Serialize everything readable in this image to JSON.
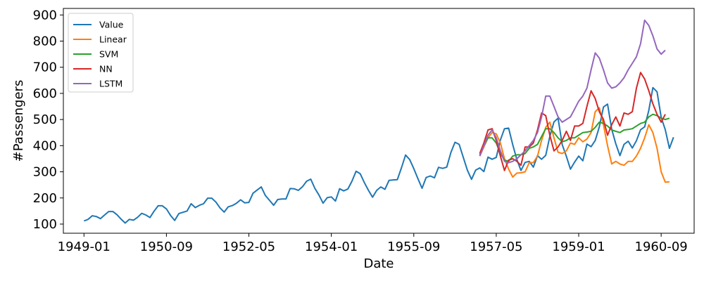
{
  "chart_data": {
    "type": "line",
    "xlabel": "Date",
    "ylabel": "#Passengers",
    "x_ticks": [
      "1949-01",
      "1950-09",
      "1952-05",
      "1954-01",
      "1955-09",
      "1957-05",
      "1959-01",
      "1960-09"
    ],
    "y_ticks": [
      100,
      200,
      300,
      400,
      500,
      600,
      700,
      800,
      900
    ],
    "xlim": [
      "1948-08",
      "1961-05"
    ],
    "ylim": [
      65,
      925
    ],
    "legend_position": "top-left",
    "grid": false,
    "x_start": "1949-01",
    "series": [
      {
        "name": "Value",
        "color": "#1f77b4",
        "start": "1949-01",
        "values": [
          112,
          118,
          132,
          129,
          121,
          135,
          148,
          148,
          136,
          119,
          104,
          118,
          115,
          126,
          141,
          135,
          125,
          149,
          170,
          170,
          158,
          133,
          114,
          140,
          145,
          150,
          178,
          163,
          172,
          178,
          199,
          199,
          184,
          162,
          146,
          166,
          171,
          180,
          193,
          181,
          183,
          218,
          230,
          242,
          209,
          191,
          172,
          194,
          196,
          196,
          236,
          235,
          229,
          243,
          264,
          272,
          237,
          211,
          180,
          201,
          204,
          188,
          235,
          227,
          234,
          264,
          302,
          293,
          259,
          229,
          203,
          229,
          242,
          233,
          267,
          269,
          270,
          315,
          364,
          347,
          312,
          274,
          237,
          278,
          284,
          277,
          317,
          313,
          318,
          374,
          413,
          405,
          355,
          306,
          271,
          306,
          315,
          301,
          356,
          348,
          355,
          422,
          465,
          467,
          404,
          347,
          305,
          336,
          340,
          318,
          362,
          348,
          363,
          435,
          491,
          505,
          404,
          359,
          310,
          337,
          360,
          342,
          406,
          396,
          420,
          472,
          548,
          559,
          463,
          407,
          362,
          405,
          417,
          391,
          419,
          461,
          472,
          535,
          622,
          606,
          508,
          461,
          390,
          432
        ]
      },
      {
        "name": "Linear",
        "color": "#ff7f0e",
        "start": "1957-01",
        "values": [
          360,
          395,
          430,
          450,
          445,
          410,
          350,
          310,
          280,
          295,
          296,
          300,
          335,
          335,
          360,
          420,
          470,
          490,
          430,
          375,
          370,
          380,
          410,
          405,
          430,
          415,
          425,
          450,
          530,
          545,
          480,
          400,
          330,
          340,
          330,
          325,
          340,
          340,
          360,
          390,
          430,
          480,
          450,
          390,
          300,
          260,
          262
        ]
      },
      {
        "name": "SVM",
        "color": "#2ca02c",
        "start": "1957-01",
        "values": [
          365,
          400,
          430,
          430,
          410,
          370,
          345,
          340,
          360,
          365,
          365,
          370,
          390,
          395,
          405,
          435,
          465,
          465,
          450,
          430,
          415,
          420,
          430,
          430,
          440,
          450,
          452,
          455,
          470,
          490,
          485,
          475,
          460,
          455,
          450,
          460,
          462,
          465,
          475,
          485,
          490,
          510,
          520,
          515,
          505,
          500,
          505
        ]
      },
      {
        "name": "NN",
        "color": "#d62728",
        "start": "1957-01",
        "values": [
          370,
          410,
          460,
          465,
          420,
          360,
          305,
          345,
          350,
          340,
          325,
          395,
          395,
          410,
          460,
          525,
          515,
          440,
          380,
          395,
          420,
          455,
          420,
          475,
          475,
          485,
          550,
          610,
          580,
          530,
          500,
          440,
          480,
          510,
          475,
          525,
          520,
          530,
          620,
          680,
          655,
          610,
          560,
          520,
          490,
          520
        ]
      },
      {
        "name": "LSTM",
        "color": "#9467bd",
        "start": "1957-01",
        "values": [
          360,
          400,
          440,
          460,
          430,
          380,
          340,
          335,
          340,
          350,
          365,
          380,
          400,
          420,
          450,
          510,
          590,
          590,
          550,
          510,
          490,
          500,
          510,
          540,
          570,
          590,
          620,
          690,
          755,
          735,
          690,
          640,
          620,
          625,
          640,
          660,
          690,
          715,
          740,
          790,
          880,
          860,
          820,
          770,
          750,
          765
        ]
      }
    ]
  }
}
